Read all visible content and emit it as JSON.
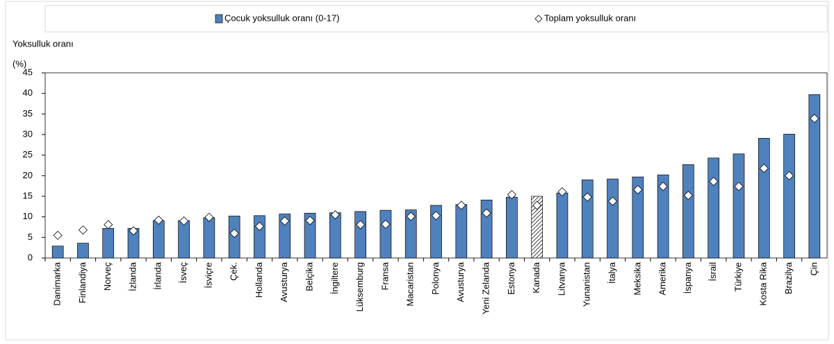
{
  "chart_data": {
    "type": "bar",
    "ylabel": [
      "Yoksulluk oranı",
      "(%)"
    ],
    "categories": [
      "Danimarka",
      "Finlandiya",
      "Norveç",
      "İzlanda",
      "İrlanda",
      "İsveç",
      "İsviçre",
      "Çek.",
      "Hollanda",
      "Avusturya",
      "Belçika",
      "İngiltere",
      "Lüksemburg",
      "Fransa",
      "Macaristan",
      "Polonya",
      "Avusturya",
      "Yeni Zelanda",
      "Estonya",
      "Kanada",
      "Litvanya",
      "Yunanistan",
      "İtalya",
      "Meksika",
      "Amerika",
      "İspanya",
      "İsrail",
      "Türkiye",
      "Kosta Rika",
      "Brazilya",
      "Çin"
    ],
    "series": [
      {
        "name": "Çocuk yoksulluk oranı (0-17)",
        "color": "#4f81bd",
        "mark": "bar",
        "values": [
          2.9,
          3.6,
          7.2,
          7.2,
          9.1,
          9.1,
          9.8,
          10.2,
          10.3,
          10.7,
          10.9,
          11.0,
          11.3,
          11.6,
          11.7,
          12.8,
          13.0,
          14.1,
          14.8,
          15.0,
          15.8,
          19.0,
          19.2,
          19.7,
          20.2,
          22.7,
          24.3,
          25.3,
          29.1,
          30.1,
          39.7
        ]
      },
      {
        "name": "Toplam yoksulluk oranı",
        "color": "#ffffff",
        "mark": "diamond",
        "values": [
          5.5,
          6.8,
          8.1,
          6.6,
          9.2,
          9.0,
          9.9,
          6.0,
          7.7,
          9.0,
          9.1,
          10.5,
          8.1,
          8.2,
          10.1,
          10.3,
          12.8,
          10.9,
          15.4,
          12.8,
          16.1,
          14.8,
          13.8,
          16.6,
          17.4,
          15.2,
          18.6,
          17.4,
          21.8,
          20.0,
          33.9
        ]
      }
    ],
    "highlight": "Kanada",
    "ylim": [
      0,
      45
    ],
    "yticks": [
      0,
      5,
      10,
      15,
      20,
      25,
      30,
      35,
      40,
      45
    ],
    "grid": false
  }
}
